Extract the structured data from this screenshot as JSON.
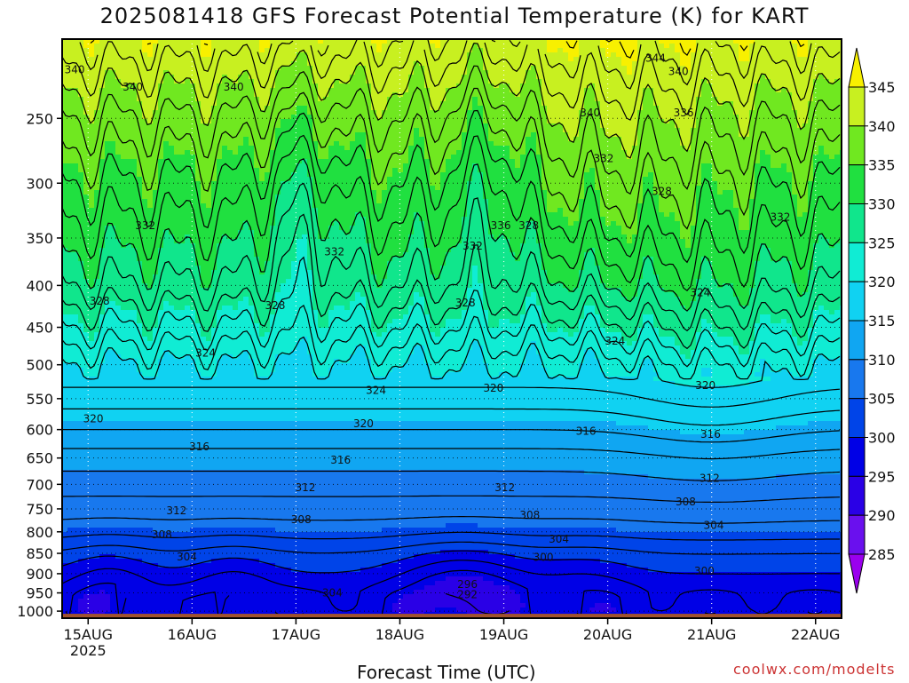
{
  "title": "2025081418 GFS Forecast Potential Temperature (K) for KART",
  "credit": "coolwx.com/modelts",
  "chart_data": {
    "type": "heatmap",
    "title": "2025081418 GFS Forecast Potential Temperature (K) for KART",
    "xlabel": "Forecast Time (UTC)",
    "ylabel": "",
    "x_ticks": [
      "15AUG",
      "16AUG",
      "17AUG",
      "18AUG",
      "19AUG",
      "20AUG",
      "21AUG",
      "22AUG"
    ],
    "x_year_label": "2025",
    "x_range_days": [
      14.75,
      22.25
    ],
    "y_ticks": [
      1000,
      950,
      900,
      850,
      800,
      750,
      700,
      650,
      600,
      550,
      500,
      450,
      400,
      350,
      300,
      250
    ],
    "y_range_hpa": [
      1020,
      200
    ],
    "y_scale": "log",
    "colorbar": {
      "levels": [
        285,
        290,
        295,
        300,
        305,
        310,
        315,
        320,
        325,
        330,
        335,
        340,
        345
      ],
      "labels": [
        "285",
        "290",
        "295",
        "300",
        "305",
        "310",
        "315",
        "320",
        "325",
        "330",
        "335",
        "340",
        "345"
      ],
      "colors": [
        "#9a00ee",
        "#6a10ee",
        "#2a00e6",
        "#0000e6",
        "#0044e8",
        "#1878ee",
        "#10a6f2",
        "#10d2f2",
        "#10ecd4",
        "#10e68c",
        "#20e040",
        "#70e820",
        "#c8f020",
        "#f8f000"
      ]
    },
    "contour_interval_K": 2,
    "ground_color": "#a0522d",
    "mean_profile": {
      "pressure_hpa": [
        1000,
        950,
        900,
        850,
        800,
        750,
        700,
        650,
        600,
        550,
        500,
        450,
        400,
        350,
        300,
        250,
        200
      ],
      "theta_K": [
        297,
        298,
        300,
        302,
        305,
        307,
        309,
        311,
        314,
        317,
        320,
        324,
        328,
        331,
        334,
        338,
        344
      ]
    },
    "contour_labels": [
      {
        "value": "340",
        "day": 14.87,
        "p": 218
      },
      {
        "value": "340",
        "day": 15.43,
        "p": 229
      },
      {
        "value": "340",
        "day": 16.4,
        "p": 229
      },
      {
        "value": "344",
        "day": 20.46,
        "p": 211
      },
      {
        "value": "340",
        "day": 20.68,
        "p": 219
      },
      {
        "value": "340",
        "day": 19.83,
        "p": 246
      },
      {
        "value": "336",
        "day": 20.73,
        "p": 246
      },
      {
        "value": "332",
        "day": 19.96,
        "p": 280
      },
      {
        "value": "328",
        "day": 20.52,
        "p": 307
      },
      {
        "value": "332",
        "day": 21.66,
        "p": 330
      },
      {
        "value": "332",
        "day": 15.55,
        "p": 338
      },
      {
        "value": "332",
        "day": 17.37,
        "p": 364
      },
      {
        "value": "332",
        "day": 18.7,
        "p": 358
      },
      {
        "value": "336",
        "day": 18.97,
        "p": 338
      },
      {
        "value": "328",
        "day": 19.24,
        "p": 338
      },
      {
        "value": "328",
        "day": 15.11,
        "p": 418
      },
      {
        "value": "328",
        "day": 16.8,
        "p": 423
      },
      {
        "value": "328",
        "day": 18.63,
        "p": 420
      },
      {
        "value": "324",
        "day": 20.07,
        "p": 468
      },
      {
        "value": "324",
        "day": 20.89,
        "p": 408
      },
      {
        "value": "324",
        "day": 16.13,
        "p": 484
      },
      {
        "value": "324",
        "day": 17.77,
        "p": 537
      },
      {
        "value": "320",
        "day": 18.9,
        "p": 534
      },
      {
        "value": "320",
        "day": 20.94,
        "p": 530
      },
      {
        "value": "320",
        "day": 15.05,
        "p": 582
      },
      {
        "value": "320",
        "day": 17.65,
        "p": 590
      },
      {
        "value": "316",
        "day": 19.79,
        "p": 603
      },
      {
        "value": "316",
        "day": 20.99,
        "p": 608
      },
      {
        "value": "316",
        "day": 16.07,
        "p": 630
      },
      {
        "value": "316",
        "day": 17.43,
        "p": 654
      },
      {
        "value": "312",
        "day": 17.09,
        "p": 706
      },
      {
        "value": "312",
        "day": 19.01,
        "p": 706
      },
      {
        "value": "312",
        "day": 20.98,
        "p": 688
      },
      {
        "value": "312",
        "day": 15.85,
        "p": 754
      },
      {
        "value": "308",
        "day": 17.05,
        "p": 773
      },
      {
        "value": "308",
        "day": 19.25,
        "p": 763
      },
      {
        "value": "308",
        "day": 20.75,
        "p": 735
      },
      {
        "value": "308",
        "day": 15.71,
        "p": 806
      },
      {
        "value": "304",
        "day": 19.53,
        "p": 817
      },
      {
        "value": "304",
        "day": 21.02,
        "p": 786
      },
      {
        "value": "304",
        "day": 15.95,
        "p": 858
      },
      {
        "value": "304",
        "day": 17.35,
        "p": 950
      },
      {
        "value": "300",
        "day": 19.38,
        "p": 859
      },
      {
        "value": "300",
        "day": 20.93,
        "p": 894
      },
      {
        "value": "296",
        "day": 18.65,
        "p": 928
      },
      {
        "value": "292",
        "day": 18.65,
        "p": 955
      },
      {
        "value": "296",
        "day": 19.88,
        "p": 1058
      }
    ]
  }
}
